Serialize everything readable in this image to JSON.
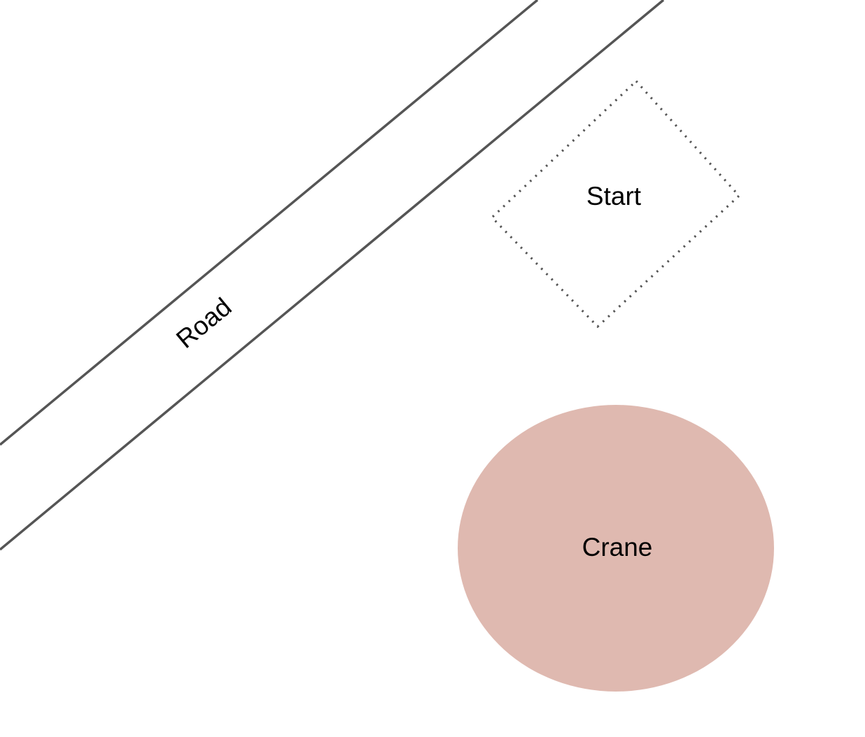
{
  "diagram": {
    "road": {
      "label": "Road"
    },
    "start": {
      "label": "Start"
    },
    "crane": {
      "label": "Crane",
      "fill_color": "#dfb9b0"
    },
    "line_color": "#555555"
  }
}
